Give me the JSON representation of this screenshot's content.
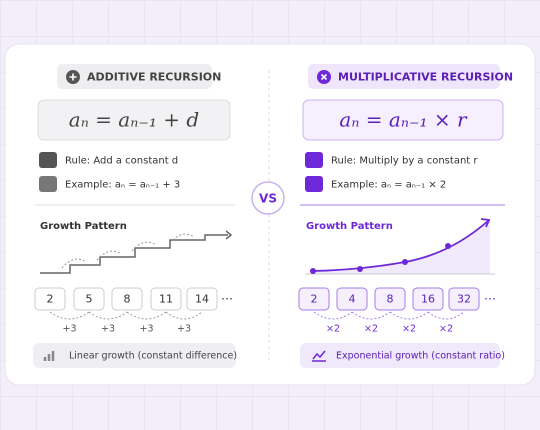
{
  "left": {
    "header": "ADDITIVE RECURSION",
    "formula": "aₙ = aₙ₋₁ + d",
    "rule": "Rule: Add a constant d",
    "example": "Example: aₙ = aₙ₋₁ + 3",
    "growth_title": "Growth Pattern",
    "sequence": [
      2,
      5,
      8,
      11,
      14
    ],
    "ellipsis": "⋯",
    "steps": [
      "+3",
      "+3",
      "+3",
      "+3"
    ],
    "footer": "Linear growth (constant difference)"
  },
  "vs": "VS",
  "right": {
    "header": "MULTIPLICATIVE RECURSION",
    "formula": "aₙ = aₙ₋₁ × r",
    "rule": "Rule: Multiply by a constant r",
    "example": "Example: aₙ = aₙ₋₁ × 2",
    "growth_title": "Growth Pattern",
    "sequence": [
      2,
      4,
      8,
      16,
      32
    ],
    "ellipsis": "⋯",
    "steps": [
      "×2",
      "×2",
      "×2",
      "×2"
    ],
    "footer": "Exponential growth (constant ratio)"
  }
}
